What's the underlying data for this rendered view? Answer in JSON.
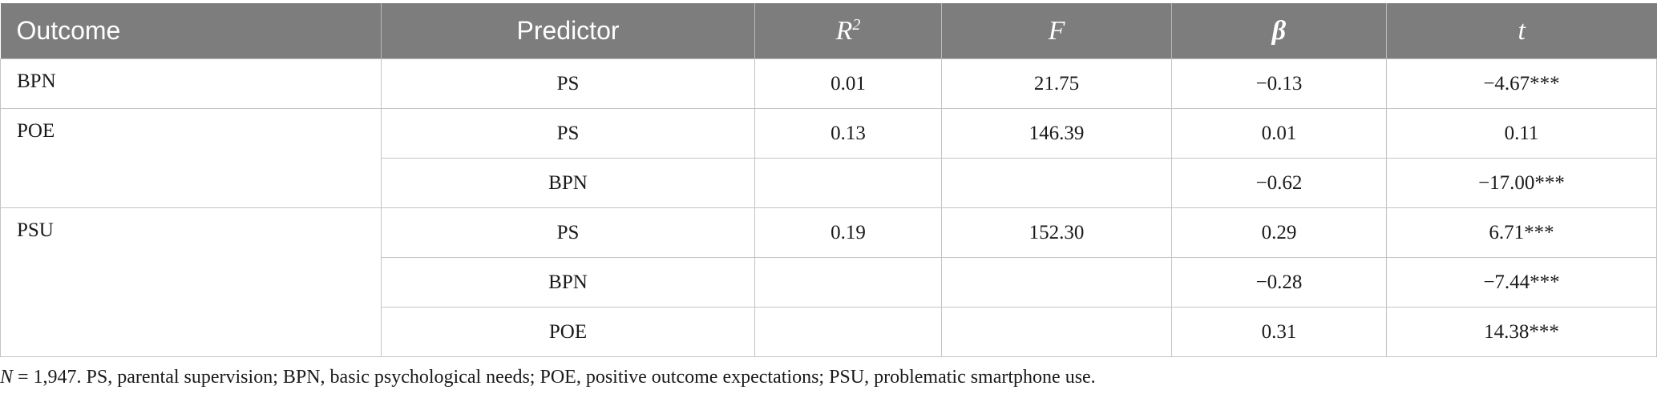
{
  "table": {
    "headers": {
      "outcome": "Outcome",
      "predictor": "Predictor",
      "r2_base": "R",
      "r2_sup": "2",
      "f": "F",
      "beta": "β",
      "t": "t"
    },
    "groups": [
      {
        "outcome": "BPN",
        "rows": [
          {
            "predictor": "PS",
            "r2": "0.01",
            "f": "21.75",
            "beta": "−0.13",
            "t": "−4.67***"
          }
        ]
      },
      {
        "outcome": "POE",
        "rows": [
          {
            "predictor": "PS",
            "r2": "0.13",
            "f": "146.39",
            "beta": "0.01",
            "t": "0.11"
          },
          {
            "predictor": "BPN",
            "r2": "",
            "f": "",
            "beta": "−0.62",
            "t": "−17.00***"
          }
        ]
      },
      {
        "outcome": "PSU",
        "rows": [
          {
            "predictor": "PS",
            "r2": "0.19",
            "f": "152.30",
            "beta": "0.29",
            "t": "6.71***"
          },
          {
            "predictor": "BPN",
            "r2": "",
            "f": "",
            "beta": "−0.28",
            "t": "−7.44***"
          },
          {
            "predictor": "POE",
            "r2": "",
            "f": "",
            "beta": "0.31",
            "t": "14.38***"
          }
        ]
      }
    ]
  },
  "note": {
    "n_label": "N",
    "text": " = 1,947. PS, parental supervision; BPN, basic psychological needs; POE, positive outcome expectations; PSU, problematic smartphone use."
  }
}
